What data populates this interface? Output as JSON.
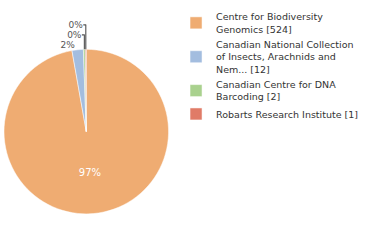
{
  "chart_data": {
    "type": "pie",
    "categories": [
      "Centre for Biodiversity Genomics [524]",
      "Canadian National Collection of Insects, Arachnids and Nem... [12]",
      "Canadian Centre for DNA Barcoding [2]",
      "Robarts Research Institute [1]"
    ],
    "values": [
      524,
      12,
      2,
      1
    ],
    "value_labels": [
      "97%",
      "2%",
      "0%",
      "0%"
    ],
    "colors": [
      "#efac72",
      "#a3bddf",
      "#a9d18e",
      "#e07b67"
    ],
    "data_labels": true,
    "legend": "upper right"
  }
}
